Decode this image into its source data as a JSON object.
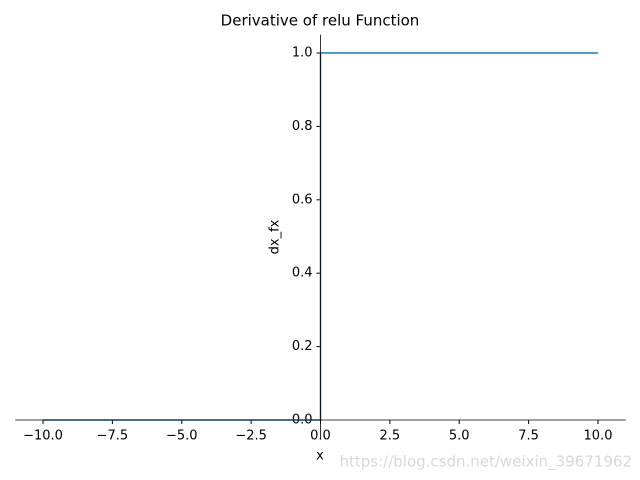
{
  "chart_data": {
    "type": "line",
    "title": "Derivative of relu Function",
    "x_label": "x",
    "y_label": "dx_fx",
    "x": [
      -10,
      0,
      0,
      10
    ],
    "series": [
      {
        "name": "dx_fx",
        "color": "#1f77b4",
        "values": [
          0,
          0,
          1,
          1
        ]
      }
    ],
    "xlim": [
      -11,
      11
    ],
    "ylim": [
      -0.05,
      1.05
    ],
    "xticks": [
      {
        "value": -10,
        "label": "−10.0"
      },
      {
        "value": -7.5,
        "label": "−7.5"
      },
      {
        "value": -5,
        "label": "−5.0"
      },
      {
        "value": -2.5,
        "label": "−2.5"
      },
      {
        "value": 0,
        "label": "0.0"
      },
      {
        "value": 2.5,
        "label": "2.5"
      },
      {
        "value": 5,
        "label": "5.0"
      },
      {
        "value": 7.5,
        "label": "7.5"
      },
      {
        "value": 10,
        "label": "10.0"
      }
    ],
    "yticks": [
      {
        "value": 0,
        "label": "0.0"
      },
      {
        "value": 0.2,
        "label": "0.2"
      },
      {
        "value": 0.4,
        "label": "0.4"
      },
      {
        "value": 0.6,
        "label": "0.6"
      },
      {
        "value": 0.8,
        "label": "0.8"
      },
      {
        "value": 1,
        "label": "1.0"
      }
    ],
    "watermark": "https://blog.csdn.net/weixin_39671962"
  }
}
